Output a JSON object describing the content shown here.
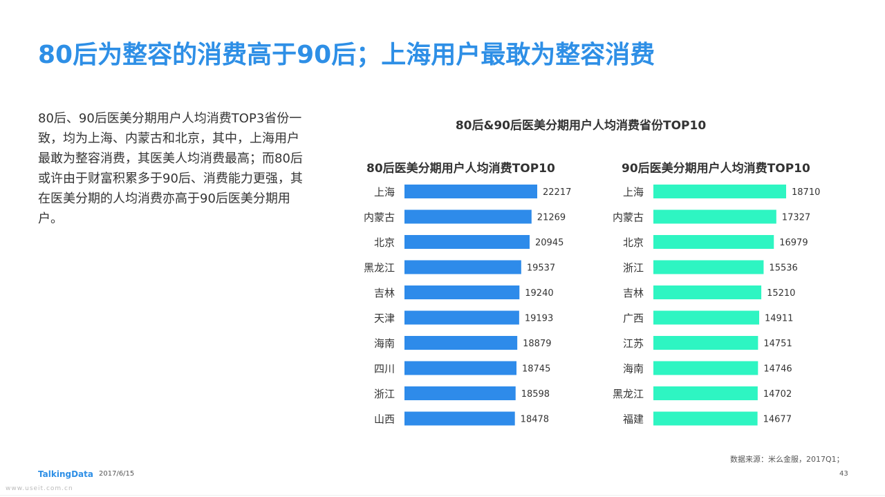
{
  "header": {
    "title": "80后为整容的消费高于90后；上海用户最敢为整容消费"
  },
  "description": "80后、90后医美分期用户人均消费TOP3省份一致，均为上海、内蒙古和北京，其中，上海用户最敢为整容消费，其医美人均消费最高；而80后或许由于财富积累多于90后、消费能力更强，其在医美分期的人均消费亦高于90后医美分期用户。",
  "chart_data": {
    "title": "80后&90后医美分期用户人均消费省份TOP10",
    "panels": [
      {
        "type": "bar",
        "orientation": "horizontal",
        "title": "80后医美分期用户人均消费TOP10",
        "color": "#2E8BEA",
        "categories": [
          "上海",
          "内蒙古",
          "北京",
          "黑龙江",
          "吉林",
          "天津",
          "海南",
          "四川",
          "浙江",
          "山西"
        ],
        "values": [
          22217,
          21269,
          20945,
          19537,
          19240,
          19193,
          18879,
          18745,
          18598,
          18478
        ]
      },
      {
        "type": "bar",
        "orientation": "horizontal",
        "title": "90后医美分期用户人均消费TOP10",
        "color": "#2EF5C2",
        "categories": [
          "上海",
          "内蒙古",
          "北京",
          "浙江",
          "吉林",
          "广西",
          "江苏",
          "海南",
          "黑龙江",
          "福建"
        ],
        "values": [
          18710,
          17327,
          16979,
          15536,
          15210,
          14911,
          14751,
          14746,
          14702,
          14677
        ]
      }
    ]
  },
  "footer": {
    "source": "数据来源：米么金服，2017Q1；",
    "logo": "TalkingData",
    "date": "2017/6/15",
    "page": "43",
    "watermark": "www.useit.com.cn"
  }
}
